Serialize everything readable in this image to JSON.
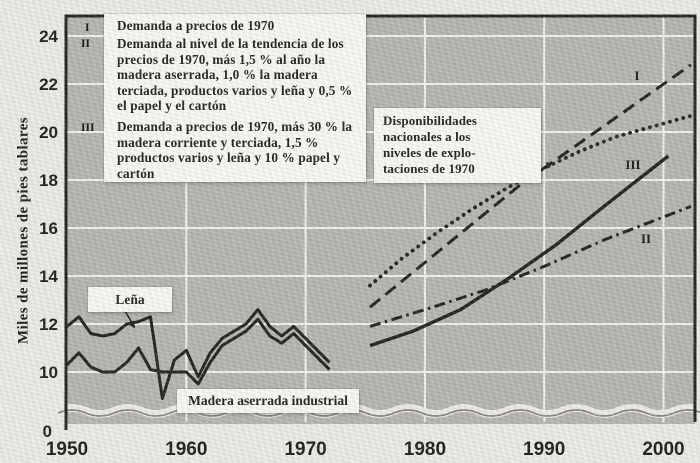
{
  "figure": {
    "y_axis_title": "Miles de millones de pies tablares",
    "y_ticks": [
      24,
      22,
      20,
      18,
      16,
      14,
      12,
      10
    ],
    "y_zero_label": "0",
    "x_ticks": [
      1950,
      1960,
      1970,
      1980,
      1990,
      2000
    ],
    "legend": {
      "entries": [
        {
          "numeral": "I",
          "text": "Demanda a precios de 1970"
        },
        {
          "numeral": "II",
          "text": "Demanda al nivel de la tendencia de los precios de 1970, más 1,5 % al año la madera aserrada, 1,0 % la madera terciada, productos varios y leña y 0,5 % el papel y el cartón"
        },
        {
          "numeral": "III",
          "text": "Demanda a precios de 1970, más 30 % la madera corriente y terciada, 1,5 % productos varios y leña y 10 % papel y cartón"
        }
      ]
    },
    "line_labels": {
      "I": "I",
      "II": "II",
      "III": "III"
    },
    "annotations": {
      "availability": "Disponibilidades\nnacionales a los\nniveles de explo-\ntaciones de 1970",
      "lena": "Leña",
      "madera": "Madera aserrada industrial"
    }
  },
  "chart_data": {
    "type": "line",
    "title": "",
    "xlabel": "",
    "ylabel": "Miles de millones de pies tablares",
    "xlim": [
      1950,
      2003
    ],
    "ylim": [
      0,
      25
    ],
    "y_axis_break": "scale breaks between 0 and 8",
    "grid": true,
    "units": "miles de millones de pies tablares",
    "series": [
      {
        "name": "Leña",
        "style": "solid",
        "x_start": 1950,
        "x_step": 1,
        "values": [
          11.9,
          12.3,
          11.6,
          11.5,
          11.6,
          12.0,
          12.1,
          12.3,
          8.9,
          10.5,
          10.9,
          9.8,
          10.8,
          11.4,
          11.7,
          12.0,
          12.6,
          11.9,
          11.5,
          11.9,
          11.4,
          10.9,
          10.4
        ]
      },
      {
        "name": "Madera aserrada industrial",
        "style": "solid",
        "x_start": 1950,
        "x_step": 1,
        "values": [
          10.3,
          10.8,
          10.2,
          10.0,
          10.0,
          10.4,
          11.0,
          10.1,
          10.0,
          10.0,
          10.0,
          9.5,
          10.4,
          11.1,
          11.4,
          11.7,
          12.2,
          11.5,
          11.2,
          11.6,
          11.1,
          10.6,
          10.1
        ]
      },
      {
        "name": "I — Demanda a precios de 1970",
        "style": "dashed",
        "points": [
          [
            1975.4,
            12.7
          ],
          [
            1988,
            17.8
          ],
          [
            2002.3,
            22.8
          ]
        ]
      },
      {
        "name": "II — Demanda al nivel de la tendencia de los precios de 1970 más alzas",
        "style": "dash-dot",
        "points": [
          [
            1975.4,
            11.9
          ],
          [
            1980,
            12.6
          ],
          [
            1985,
            13.4
          ],
          [
            1990,
            14.4
          ],
          [
            1995,
            15.5
          ],
          [
            2002.3,
            16.9
          ]
        ]
      },
      {
        "name": "III — Demanda a precios de 1970 más 30 %",
        "style": "solid",
        "points": [
          [
            1975.4,
            11.1
          ],
          [
            1979,
            11.7
          ],
          [
            1983,
            12.6
          ],
          [
            1987,
            13.9
          ],
          [
            1991,
            15.3
          ],
          [
            1995,
            16.9
          ],
          [
            2000.4,
            19.0
          ]
        ]
      },
      {
        "name": "Disponibilidades nacionales a los niveles de explotaciones de 1970",
        "style": "dotted",
        "points": [
          [
            1975.4,
            13.6
          ],
          [
            1978,
            14.7
          ],
          [
            1981,
            15.8
          ],
          [
            1984,
            16.8
          ],
          [
            1987,
            17.7
          ],
          [
            1990,
            18.5
          ],
          [
            1993,
            19.2
          ],
          [
            1996,
            19.8
          ],
          [
            2002.5,
            20.7
          ]
        ]
      }
    ]
  },
  "colors": {
    "ink": "#22211e",
    "plot_bg": "#b6b4ae",
    "grid": "#f2f1ec",
    "paper": "#eceae5",
    "box_bg": "#f8f7f3"
  }
}
